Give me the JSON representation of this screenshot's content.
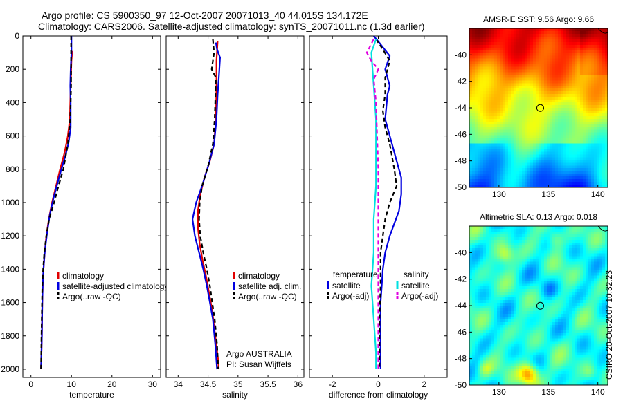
{
  "header": {
    "line1": "Argo profile: CS 5900350_97 12-Oct-2007 20071013_40 44.015S 134.172E",
    "line2": "Climatology: CARS2006. Satellite-adjusted climatology: synTS_20071011.nc (1.3d earlier)"
  },
  "stamp": "CSIRO 20-Oct-2007 10:32:23",
  "colors": {
    "climatology": "#e00000",
    "satellite": "#0000e0",
    "argo": "#000000",
    "salinity_satellite": "#00e0e0",
    "salinity_argo": "#e000e0"
  },
  "chart_data": [
    {
      "type": "line",
      "xlabel": "temperature",
      "xlim": [
        -2,
        32
      ],
      "xticks": [
        "0",
        "10",
        "20",
        "30"
      ],
      "xtick_values": [
        0,
        10,
        20,
        30
      ],
      "ylim": [
        2050,
        0
      ],
      "yticks": [
        "0",
        "200",
        "400",
        "600",
        "800",
        "1000",
        "1200",
        "1400",
        "1600",
        "1800",
        "2000"
      ],
      "ytick_values": [
        0,
        200,
        400,
        600,
        800,
        1000,
        1200,
        1400,
        1600,
        1800,
        2000
      ],
      "series": [
        {
          "name": "climatology",
          "style": "solid",
          "color_key": "climatology",
          "points": [
            [
              10.2,
              90
            ],
            [
              10.0,
              150
            ],
            [
              9.8,
              300
            ],
            [
              9.6,
              500
            ],
            [
              9.1,
              600
            ],
            [
              8.3,
              700
            ],
            [
              7.2,
              800
            ],
            [
              6.2,
              900
            ],
            [
              5.2,
              1000
            ],
            [
              4.4,
              1100
            ],
            [
              3.8,
              1200
            ],
            [
              3.4,
              1300
            ],
            [
              3.1,
              1400
            ],
            [
              2.9,
              1500
            ],
            [
              2.8,
              1600
            ],
            [
              2.7,
              1800
            ],
            [
              2.6,
              1900
            ],
            [
              2.5,
              2000
            ]
          ]
        },
        {
          "name": "satellite-adjusted climatology",
          "style": "solid",
          "color_key": "satellite",
          "points": [
            [
              10.0,
              0
            ],
            [
              10.0,
              100
            ],
            [
              9.8,
              200
            ],
            [
              9.7,
              300
            ],
            [
              9.8,
              400
            ],
            [
              9.8,
              550
            ],
            [
              9.3,
              640
            ],
            [
              8.5,
              720
            ],
            [
              7.5,
              800
            ],
            [
              6.6,
              880
            ],
            [
              5.5,
              980
            ],
            [
              4.6,
              1080
            ],
            [
              3.9,
              1200
            ],
            [
              3.4,
              1300
            ],
            [
              3.1,
              1400
            ],
            [
              2.9,
              1500
            ],
            [
              2.8,
              1600
            ],
            [
              2.7,
              1800
            ],
            [
              2.6,
              1900
            ],
            [
              2.5,
              2000
            ]
          ]
        },
        {
          "name": "Argo(..raw -QC)",
          "style": "dashed",
          "color_key": "argo",
          "points": [
            [
              9.9,
              0
            ],
            [
              9.9,
              300
            ],
            [
              9.7,
              500
            ],
            [
              9.1,
              650
            ],
            [
              8.0,
              800
            ],
            [
              6.8,
              900
            ],
            [
              5.7,
              1000
            ],
            [
              4.5,
              1100
            ],
            [
              3.8,
              1200
            ],
            [
              3.3,
              1300
            ],
            [
              3.0,
              1400
            ],
            [
              2.8,
              1500
            ],
            [
              2.7,
              1650
            ],
            [
              2.6,
              1800
            ],
            [
              2.5,
              2000
            ]
          ]
        }
      ],
      "legend": {
        "position": "lower-middle",
        "entries": [
          "climatology",
          "satellite-adjusted climatology",
          "Argo(..raw -QC)"
        ]
      }
    },
    {
      "type": "line",
      "xlabel": "salinity",
      "xlim": [
        33.8,
        36.1
      ],
      "xticks": [
        "34",
        "34.5",
        "35",
        "35.5",
        "36"
      ],
      "xtick_values": [
        34,
        34.5,
        35,
        35.5,
        36
      ],
      "ylim": [
        2050,
        0
      ],
      "series": [
        {
          "name": "climatology",
          "style": "solid",
          "color_key": "climatology",
          "points": [
            [
              34.66,
              30
            ],
            [
              34.64,
              150
            ],
            [
              34.64,
              300
            ],
            [
              34.63,
              500
            ],
            [
              34.6,
              650
            ],
            [
              34.53,
              750
            ],
            [
              34.44,
              850
            ],
            [
              34.37,
              950
            ],
            [
              34.33,
              1050
            ],
            [
              34.33,
              1150
            ],
            [
              34.36,
              1250
            ],
            [
              34.41,
              1350
            ],
            [
              34.47,
              1450
            ],
            [
              34.52,
              1550
            ],
            [
              34.57,
              1650
            ],
            [
              34.62,
              1800
            ],
            [
              34.67,
              1950
            ],
            [
              34.68,
              2000
            ]
          ]
        },
        {
          "name": "satellite adj. clim.",
          "style": "solid",
          "color_key": "satellite",
          "points": [
            [
              34.63,
              40
            ],
            [
              34.65,
              80
            ],
            [
              34.7,
              130
            ],
            [
              34.68,
              250
            ],
            [
              34.66,
              350
            ],
            [
              34.64,
              500
            ],
            [
              34.6,
              650
            ],
            [
              34.52,
              760
            ],
            [
              34.4,
              900
            ],
            [
              34.3,
              1000
            ],
            [
              34.24,
              1100
            ],
            [
              34.28,
              1200
            ],
            [
              34.35,
              1300
            ],
            [
              34.42,
              1400
            ],
            [
              34.48,
              1500
            ],
            [
              34.53,
              1600
            ],
            [
              34.58,
              1700
            ],
            [
              34.62,
              1850
            ],
            [
              34.65,
              2000
            ]
          ]
        },
        {
          "name": "Argo(..raw -QC)",
          "style": "dashed",
          "color_key": "argo",
          "points": [
            [
              34.58,
              20
            ],
            [
              34.6,
              100
            ],
            [
              34.56,
              200
            ],
            [
              34.63,
              250
            ],
            [
              34.62,
              400
            ],
            [
              34.61,
              500
            ],
            [
              34.58,
              650
            ],
            [
              34.5,
              780
            ],
            [
              34.4,
              900
            ],
            [
              34.36,
              1000
            ],
            [
              34.35,
              1100
            ],
            [
              34.37,
              1200
            ],
            [
              34.42,
              1300
            ],
            [
              34.48,
              1400
            ],
            [
              34.53,
              1500
            ],
            [
              34.57,
              1600
            ],
            [
              34.61,
              1700
            ],
            [
              34.65,
              1850
            ],
            [
              34.67,
              2000
            ]
          ]
        }
      ],
      "legend": {
        "position": "lower-right",
        "entries": [
          "climatology",
          "satellite adj. clim.",
          "Argo(..raw -QC)"
        ]
      },
      "annotation": {
        "line1": "Argo AUSTRALIA",
        "line2": "PI: Susan Wijffels"
      }
    },
    {
      "type": "line",
      "xlabel": "difference from climatology",
      "xlim": [
        -3.0,
        3.0
      ],
      "xticks": [
        "-2",
        "0",
        "2"
      ],
      "xtick_values": [
        -2,
        0,
        2
      ],
      "ylim": [
        2050,
        0
      ],
      "series": [
        {
          "name": "temperature satellite",
          "style": "solid",
          "color_key": "satellite",
          "points": [
            [
              -0.2,
              0
            ],
            [
              0.1,
              50
            ],
            [
              0.5,
              120
            ],
            [
              0.3,
              200
            ],
            [
              0.5,
              300
            ],
            [
              0.4,
              350
            ],
            [
              0.3,
              500
            ],
            [
              0.6,
              650
            ],
            [
              0.8,
              750
            ],
            [
              1.0,
              850
            ],
            [
              1.0,
              950
            ],
            [
              0.9,
              1050
            ],
            [
              0.5,
              1200
            ],
            [
              0.3,
              1300
            ],
            [
              0.2,
              1400
            ],
            [
              0.15,
              1500
            ],
            [
              0.1,
              1600
            ],
            [
              0.1,
              1800
            ],
            [
              0.1,
              2000
            ]
          ]
        },
        {
          "name": "temperature Argo(-adj)",
          "style": "dashed",
          "color_key": "argo",
          "points": [
            [
              -0.1,
              20
            ],
            [
              0.2,
              80
            ],
            [
              0.5,
              150
            ],
            [
              0.3,
              250
            ],
            [
              0.3,
              350
            ],
            [
              0.2,
              450
            ],
            [
              0.3,
              550
            ],
            [
              0.5,
              650
            ],
            [
              0.7,
              800
            ],
            [
              0.8,
              900
            ],
            [
              0.5,
              1000
            ],
            [
              0.3,
              1100
            ],
            [
              0.2,
              1200
            ],
            [
              0.1,
              1300
            ],
            [
              0.1,
              1500
            ],
            [
              0.05,
              1700
            ],
            [
              0.05,
              2000
            ]
          ]
        },
        {
          "name": "salinity satellite",
          "style": "solid",
          "color_key": "salinity_satellite",
          "points": [
            [
              -0.1,
              20
            ],
            [
              -0.3,
              100
            ],
            [
              -0.2,
              300
            ],
            [
              -0.1,
              500
            ],
            [
              -0.1,
              700
            ],
            [
              -0.1,
              900
            ],
            [
              -0.2,
              1100
            ],
            [
              -0.2,
              1300
            ],
            [
              -0.3,
              1500
            ],
            [
              -0.2,
              1700
            ],
            [
              -0.1,
              1900
            ],
            [
              -0.1,
              2000
            ]
          ]
        },
        {
          "name": "salinity Argo(-adj)",
          "style": "dashed",
          "color_key": "salinity_argo",
          "points": [
            [
              -0.2,
              20
            ],
            [
              -0.5,
              100
            ],
            [
              -0.3,
              150
            ],
            [
              0.0,
              200
            ],
            [
              -0.2,
              260
            ],
            [
              -0.1,
              400
            ],
            [
              -0.05,
              600
            ],
            [
              0.0,
              800
            ],
            [
              0.0,
              1000
            ],
            [
              0.0,
              1200
            ],
            [
              0.0,
              1400
            ],
            [
              0.0,
              1600
            ],
            [
              0.0,
              1800
            ],
            [
              0.0,
              2000
            ]
          ]
        }
      ],
      "legend": {
        "position": "lower-middle",
        "columns": [
          {
            "title": "temperature",
            "entries": [
              "satellite",
              "Argo(-adj)"
            ]
          },
          {
            "title": "salinity",
            "entries": [
              "satellite",
              "Argo(-adj)"
            ]
          }
        ]
      }
    },
    {
      "type": "heatmap",
      "title": "AMSR-E SST: 9.56 Argo: 9.66",
      "xlim": [
        127,
        141
      ],
      "ylim": [
        -50,
        -38
      ],
      "xticks": [
        "130",
        "135",
        "140"
      ],
      "xtick_values": [
        130,
        135,
        140
      ],
      "yticks": [
        "-40",
        "-42",
        "-44",
        "-46",
        "-48",
        "-50"
      ],
      "ytick_values": [
        -40,
        -42,
        -44,
        -46,
        -48,
        -50
      ],
      "colormap": "jet",
      "marker": {
        "lon": 134.172,
        "lat": -44.015
      }
    },
    {
      "type": "heatmap",
      "title": "Altimetric SLA: 0.13 Argo: 0.018",
      "xlim": [
        127,
        141
      ],
      "ylim": [
        -50,
        -38
      ],
      "xticks": [
        "130",
        "135",
        "140"
      ],
      "xtick_values": [
        130,
        135,
        140
      ],
      "yticks": [
        "-40",
        "-42",
        "-44",
        "-46",
        "-48",
        "-50"
      ],
      "ytick_values": [
        -40,
        -42,
        -44,
        -46,
        -48,
        -50
      ],
      "colormap": "jet",
      "marker": {
        "lon": 134.172,
        "lat": -44.015
      }
    }
  ]
}
